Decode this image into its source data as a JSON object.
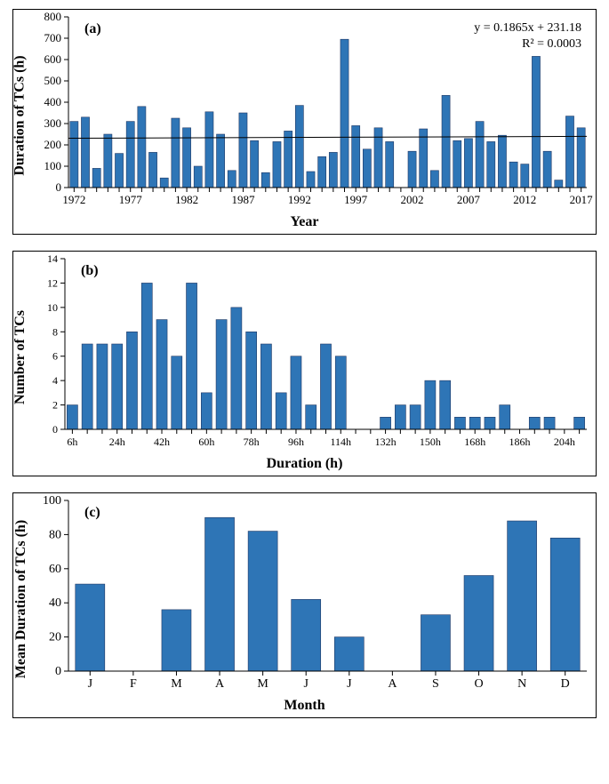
{
  "panels": {
    "a": {
      "label": "(a)",
      "ylabel": "Duration of TCs (h)",
      "xlabel": "Year",
      "ylim": [
        0,
        800
      ],
      "ytick_step": 100,
      "xtick_start": 1972,
      "xtick_step": 5,
      "xtick_end": 2017,
      "bar_color": "#2e75b6",
      "bar_stroke": "#203864",
      "trend_eq": "y = 0.1865x + 231.18",
      "trend_r2": "R² = 0.0003",
      "trend_y0": 231,
      "trend_y1": 240,
      "font_size_labels": 16,
      "font_size_ticks": 13,
      "font_size_annot": 14,
      "years": [
        1972,
        1973,
        1974,
        1975,
        1976,
        1977,
        1978,
        1979,
        1980,
        1981,
        1982,
        1983,
        1984,
        1985,
        1986,
        1987,
        1988,
        1989,
        1990,
        1991,
        1992,
        1993,
        1994,
        1995,
        1996,
        1997,
        1998,
        1999,
        2000,
        2001,
        2002,
        2003,
        2004,
        2005,
        2006,
        2007,
        2008,
        2009,
        2010,
        2011,
        2012,
        2013,
        2014,
        2015,
        2016,
        2017
      ],
      "values": [
        310,
        330,
        90,
        250,
        160,
        310,
        380,
        165,
        45,
        325,
        280,
        100,
        355,
        250,
        80,
        350,
        220,
        70,
        215,
        265,
        385,
        75,
        145,
        165,
        695,
        290,
        180,
        280,
        215,
        0,
        170,
        275,
        80,
        432,
        220,
        230,
        310,
        215,
        245,
        120,
        110,
        615,
        170,
        35,
        335,
        280
      ]
    },
    "b": {
      "label": "(b)",
      "ylabel": "Number of TCs",
      "xlabel": "Duration (h)",
      "ylim": [
        0,
        14
      ],
      "ytick_step": 2,
      "font_size_labels": 16,
      "font_size_ticks": 12,
      "bar_color": "#2e75b6",
      "bar_stroke": "#203864",
      "categories": [
        "6h",
        "",
        "",
        "24h",
        "",
        "",
        "42h",
        "",
        "",
        "60h",
        "",
        "",
        "78h",
        "",
        "",
        "96h",
        "",
        "",
        "114h",
        "",
        "",
        "132h",
        "",
        "",
        "150h",
        "",
        "",
        "168h",
        "",
        "",
        "186h",
        "",
        "",
        "204h",
        ""
      ],
      "values": [
        2,
        7,
        7,
        7,
        8,
        12,
        9,
        6,
        12,
        3,
        9,
        10,
        8,
        7,
        3,
        6,
        2,
        7,
        6,
        0,
        0,
        1,
        2,
        2,
        4,
        4,
        1,
        1,
        1,
        2,
        0,
        1,
        1,
        0,
        1
      ]
    },
    "c": {
      "label": "(c)",
      "ylabel": "Mean Duration of TCs (h)",
      "xlabel": "Month",
      "ylim": [
        0,
        100
      ],
      "ytick_step": 20,
      "font_size_labels": 16,
      "font_size_ticks": 14,
      "bar_color": "#2e75b6",
      "bar_stroke": "#203864",
      "categories": [
        "J",
        "F",
        "M",
        "A",
        "M",
        "J",
        "J",
        "A",
        "S",
        "O",
        "N",
        "D"
      ],
      "values": [
        51,
        0,
        36,
        90,
        82,
        42,
        20,
        0,
        33,
        56,
        88,
        78
      ]
    }
  }
}
